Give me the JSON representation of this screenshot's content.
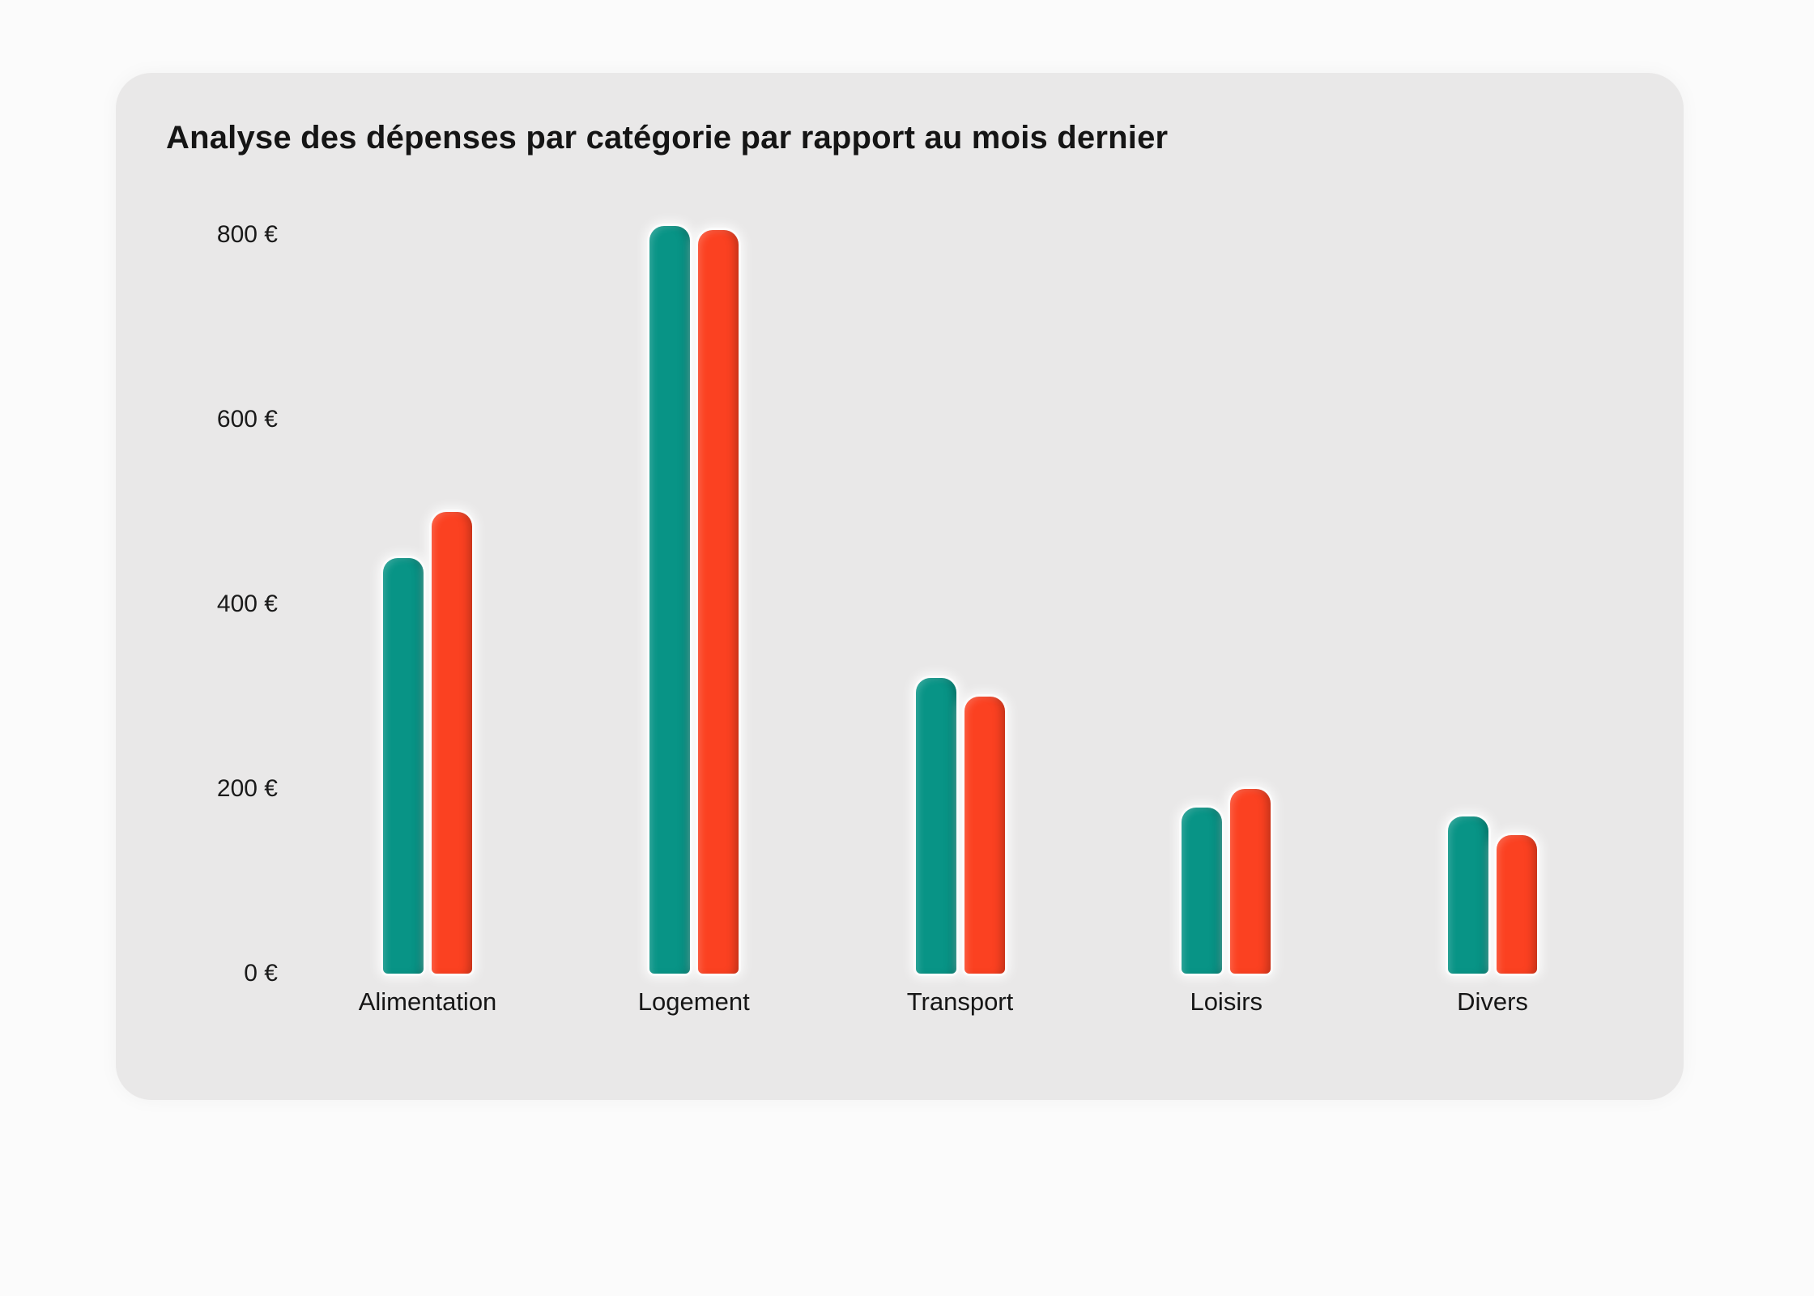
{
  "page": {
    "background_color": "#fbfbfb",
    "card_background_color": "#e9e8e8"
  },
  "chart_data": {
    "type": "bar",
    "title": "Analyse des dépenses par catégorie par rapport au mois dernier",
    "categories": [
      "Alimentation",
      "Logement",
      "Transport",
      "Loisirs",
      "Divers"
    ],
    "series": [
      {
        "name": "teal",
        "color": "#089486",
        "values": [
          450,
          810,
          320,
          180,
          170
        ]
      },
      {
        "name": "orange-red",
        "color": "#fb4121",
        "values": [
          500,
          805,
          300,
          200,
          150
        ]
      }
    ],
    "yticks": [
      {
        "value": 0,
        "label": "0 €"
      },
      {
        "value": 200,
        "label": "200 €"
      },
      {
        "value": 400,
        "label": "400 €"
      },
      {
        "value": 600,
        "label": "600 €"
      },
      {
        "value": 800,
        "label": "800 €"
      }
    ],
    "ylim": [
      0,
      800
    ],
    "ylabel": "",
    "xlabel": "",
    "grid": false,
    "legend_position": "none",
    "currency_suffix": " €"
  }
}
